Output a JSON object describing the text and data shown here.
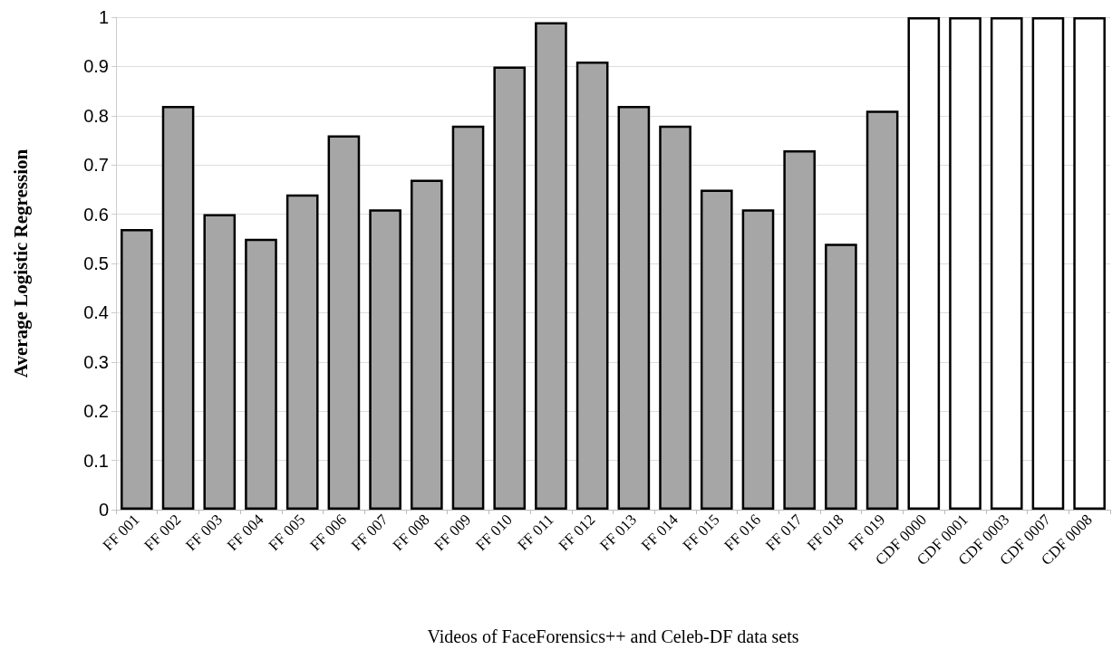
{
  "chart_data": {
    "type": "bar",
    "xlabel": "Videos of FaceForensics++ and Celeb-DF data sets",
    "ylabel": "Average Logistic Regression",
    "categories": [
      "FF 001",
      "FF 002",
      "FF 003",
      "FF 004",
      "FF 005",
      "FF 006",
      "FF 007",
      "FF 008",
      "FF 009",
      "FF 010",
      "FF 011",
      "FF 012",
      "FF 013",
      "FF 014",
      "FF 015",
      "FF 016",
      "FF 017",
      "FF 018",
      "FF 019",
      "CDF 0000",
      "CDF 0001",
      "CDF 0003",
      "CDF 0007",
      "CDF 0008"
    ],
    "values": [
      0.57,
      0.82,
      0.6,
      0.55,
      0.64,
      0.76,
      0.61,
      0.67,
      0.78,
      0.9,
      0.99,
      0.91,
      0.82,
      0.78,
      0.65,
      0.61,
      0.73,
      0.54,
      0.81,
      1,
      1,
      1,
      1,
      1
    ],
    "colors": [
      "#a6a6a6",
      "#a6a6a6",
      "#a6a6a6",
      "#a6a6a6",
      "#a6a6a6",
      "#a6a6a6",
      "#a6a6a6",
      "#a6a6a6",
      "#a6a6a6",
      "#a6a6a6",
      "#a6a6a6",
      "#a6a6a6",
      "#a6a6a6",
      "#a6a6a6",
      "#a6a6a6",
      "#a6a6a6",
      "#a6a6a6",
      "#a6a6a6",
      "#a6a6a6",
      "#ffffff",
      "#ffffff",
      "#ffffff",
      "#ffffff",
      "#ffffff"
    ],
    "ylim": [
      0,
      1
    ],
    "yticks": [
      0,
      0.1,
      0.2,
      0.3,
      0.4,
      0.5,
      0.6,
      0.7,
      0.8,
      0.9,
      1
    ],
    "grid": "y"
  }
}
